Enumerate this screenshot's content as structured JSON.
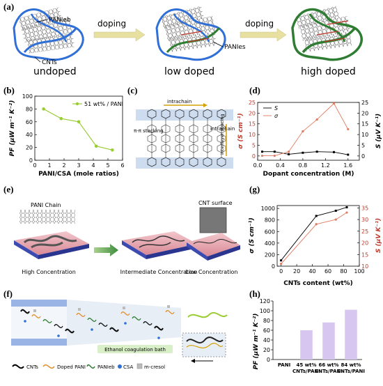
{
  "panels": {
    "a": {
      "letter": "(a)",
      "stages": [
        "undoped",
        "low doped",
        "high doped"
      ],
      "arrows": [
        "doping",
        "doping"
      ],
      "labels": {
        "panieb": "PANIeb",
        "cnts": "CNTs",
        "panies": "PANIes"
      }
    },
    "b": {
      "letter": "(b)",
      "legend": "51 wt% / PANI",
      "ylabel": "PF (μW m⁻¹ K⁻²)",
      "xlabel": "PANI/CSA (mole ratios)"
    },
    "c": {
      "letter": "(c)",
      "labels": {
        "intrachain_top": "intrachain",
        "intrachain_side": "intrachain",
        "pi_stacking": "π-π stacking",
        "interlayer": "interlayer spacing"
      }
    },
    "d": {
      "letter": "(d)",
      "legend": [
        "S",
        "σ"
      ],
      "ylabel_left": "σ (S cm⁻¹)",
      "ylabel_right": "S (μV K⁻¹)",
      "xlabel": "Dopant concentration (M)"
    },
    "e": {
      "letter": "(e)",
      "labels": {
        "chain": "PANI Chain",
        "surface": "CNT surface",
        "high": "High Concentration",
        "intermediate": "Intermediate Concentration",
        "low": "Low Concentration"
      }
    },
    "f": {
      "letter": "(f)",
      "bath": "Ethanol coagulation bath",
      "legend": [
        "CNTs",
        "Doped PANI",
        "PANIeb",
        "CSA",
        "m-cresol"
      ]
    },
    "g": {
      "letter": "(g)",
      "ylabel_left": "σ (S cm⁻¹)",
      "ylabel_right": "S (μV K⁻¹)",
      "xlabel": "CNTs content (wt%)"
    },
    "h": {
      "letter": "(h)",
      "ylabel": "PF (μW m⁻¹ K⁻²)",
      "categories": [
        "PANI",
        "45 wt%\nCNTs/PANI",
        "66 wt%\nCNTs/PANI",
        "84 wt%\nCNTs/PANI"
      ]
    }
  },
  "colors": {
    "blue": "#2f6fd6",
    "green": "#2e7d32",
    "lime": "#9acd32",
    "red": "#e07a5f",
    "bar": "#d6c6f0",
    "pink": "#e8a0a8"
  },
  "chart_data": [
    {
      "panel": "b",
      "type": "line",
      "series": [
        {
          "name": "51 wt% / PANI",
          "x": [
            0.6,
            1.8,
            3.0,
            4.2,
            5.3
          ],
          "y": [
            80,
            65,
            60,
            22,
            16
          ]
        }
      ],
      "xlim": [
        0,
        6
      ],
      "ylim": [
        0,
        100
      ],
      "xticks": [
        0,
        1,
        2,
        3,
        4,
        5,
        6
      ],
      "yticks": [
        0,
        20,
        40,
        60,
        80,
        100
      ]
    },
    {
      "panel": "d",
      "type": "line",
      "series": [
        {
          "name": "S",
          "axis": "right",
          "x": [
            0.08,
            0.3,
            0.55,
            0.8,
            1.05,
            1.35,
            1.6
          ],
          "y": [
            2,
            2,
            0.8,
            1.5,
            2,
            1.8,
            0.6
          ]
        },
        {
          "name": "σ",
          "axis": "left",
          "x": [
            0.08,
            0.3,
            0.55,
            0.8,
            1.05,
            1.35,
            1.6
          ],
          "y": [
            0.1,
            0.1,
            2,
            11.5,
            17,
            24.5,
            12.5
          ]
        }
      ],
      "xlim": [
        0,
        1.8
      ],
      "ylim_left": [
        -2,
        25
      ],
      "ylim_right": [
        -2,
        25
      ],
      "xticks": [
        0.0,
        0.4,
        0.8,
        1.2,
        1.6
      ],
      "yticks_left": [
        0,
        5,
        10,
        15,
        20,
        25
      ],
      "yticks_right": [
        0,
        5,
        10,
        15,
        20,
        25
      ]
    },
    {
      "panel": "g",
      "type": "line",
      "series": [
        {
          "name": "σ",
          "axis": "left",
          "x": [
            0,
            45,
            70,
            84
          ],
          "y": [
            100,
            870,
            960,
            1020
          ]
        },
        {
          "name": "S",
          "axis": "right",
          "x": [
            0,
            45,
            70,
            84
          ],
          "y": [
            11,
            28,
            30,
            33
          ]
        }
      ],
      "xlim": [
        -5,
        100
      ],
      "ylim_left": [
        0,
        1050
      ],
      "ylim_right": [
        10,
        36
      ],
      "xticks": [
        0,
        20,
        40,
        60,
        80,
        100
      ],
      "yticks_left": [
        0,
        200,
        400,
        600,
        800,
        1000
      ],
      "yticks_right": [
        10,
        15,
        20,
        25,
        30,
        35
      ]
    },
    {
      "panel": "h",
      "type": "bar",
      "categories": [
        "PANI",
        "45 wt% CNTs/PANI",
        "66 wt% CNTs/PANI",
        "84 wt% CNTs/PANI"
      ],
      "values": [
        0,
        60,
        76,
        102
      ],
      "ylim": [
        0,
        120
      ],
      "yticks": [
        0,
        20,
        40,
        60,
        80,
        100,
        120
      ]
    }
  ]
}
